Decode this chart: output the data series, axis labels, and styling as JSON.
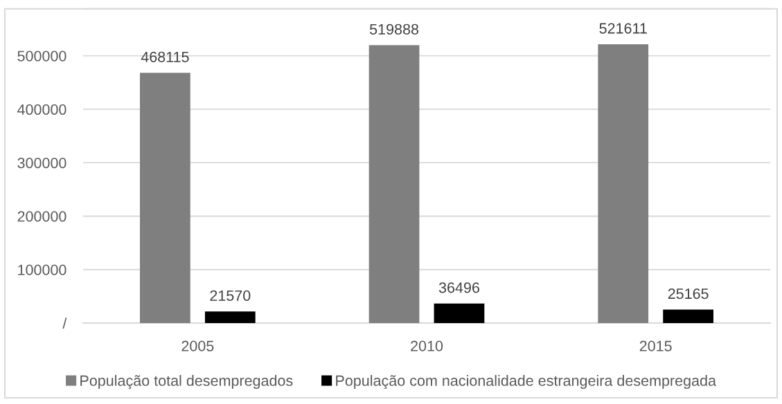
{
  "chart_data": {
    "type": "bar",
    "categories": [
      "2005",
      "2010",
      "2015"
    ],
    "series": [
      {
        "name": "População total desempregados",
        "color": "#7f7f7f",
        "values": [
          468115,
          519888,
          521611
        ]
      },
      {
        "name": "População com nacionalidade estrangeira desempregada",
        "color": "#000000",
        "values": [
          21570,
          36496,
          25165
        ]
      }
    ],
    "ylim": [
      0,
      588000
    ],
    "yticks": [
      {
        "value": 0,
        "label": "/"
      },
      100000,
      200000,
      300000,
      400000,
      500000
    ],
    "grid": "y",
    "legend": "bottom",
    "data_labels": true
  }
}
